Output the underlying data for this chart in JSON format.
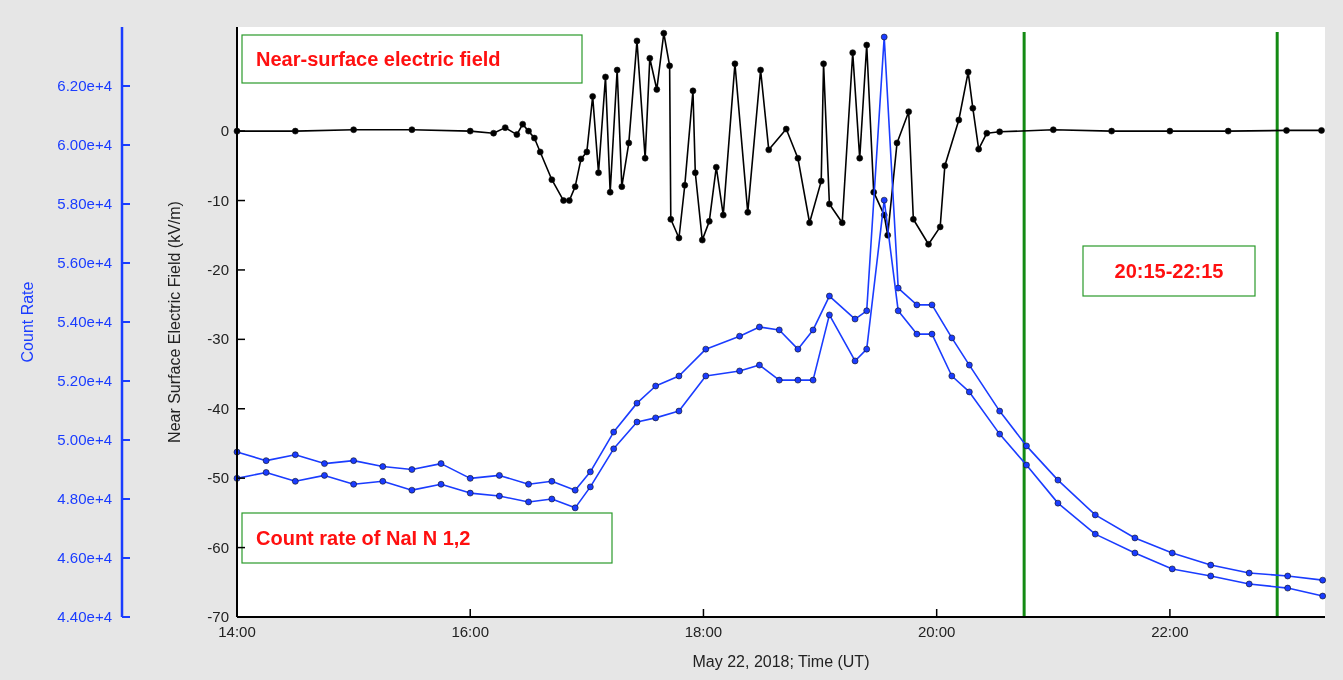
{
  "chart_data": {
    "type": "line",
    "xlabel": "May 22, 2018; Time (UT)",
    "ylabel": "Near Surface Electric Field (kV/m)",
    "y2label": "Count Rate",
    "annotations": [
      "Near-surface electric field",
      "Count rate of NaI N 1,2",
      "20:15-22:15"
    ],
    "xlim": [
      14,
      23.33
    ],
    "xticks": [
      {
        "value": 14,
        "label": "14:00"
      },
      {
        "value": 16,
        "label": "16:00"
      },
      {
        "value": 18,
        "label": "18:00"
      },
      {
        "value": 20,
        "label": "20:00"
      },
      {
        "value": 22,
        "label": "22:00"
      }
    ],
    "ylim": [
      -70,
      15
    ],
    "yticks": [
      -70,
      -60,
      -50,
      -40,
      -30,
      -20,
      -10,
      0
    ],
    "y2lim": [
      44000,
      64000
    ],
    "y2ticks": [
      {
        "value": 44000,
        "label": "4.40e+4"
      },
      {
        "value": 46000,
        "label": "4.60e+4"
      },
      {
        "value": 48000,
        "label": "4.80e+4"
      },
      {
        "value": 50000,
        "label": "5.00e+4"
      },
      {
        "value": 52000,
        "label": "5.20e+4"
      },
      {
        "value": 54000,
        "label": "5.40e+4"
      },
      {
        "value": 56000,
        "label": "5.60e+4"
      },
      {
        "value": 58000,
        "label": "5.80e+4"
      },
      {
        "value": 60000,
        "label": "6.00e+4"
      },
      {
        "value": 62000,
        "label": "6.20e+4"
      }
    ],
    "marker": "circle",
    "ref_lines": [
      {
        "axis": "x",
        "value": 20.75,
        "color": "#138a13"
      },
      {
        "axis": "x",
        "value": 22.92,
        "color": "#138a13"
      }
    ],
    "series": [
      {
        "color": "#000000",
        "x": [
          14,
          14.5,
          15,
          15.5,
          16,
          16.2,
          16.3,
          16.4,
          16.45,
          16.5,
          16.55,
          16.6,
          16.7,
          16.8,
          16.85,
          16.9,
          16.95,
          17,
          17.05,
          17.1,
          17.16,
          17.2,
          17.26,
          17.3,
          17.36,
          17.43,
          17.5,
          17.54,
          17.6,
          17.66,
          17.71,
          17.72,
          17.79,
          17.84,
          17.91,
          17.93,
          17.99,
          18.05,
          18.11,
          18.17,
          18.27,
          18.38,
          18.49,
          18.56,
          18.71,
          18.81,
          18.91,
          19.01,
          19.03,
          19.08,
          19.19,
          19.28,
          19.34,
          19.4,
          19.46,
          19.55,
          19.58,
          19.66,
          19.76,
          19.8,
          19.93,
          20.03,
          20.07,
          20.19,
          20.27,
          20.31,
          20.36,
          20.43,
          20.54,
          21,
          21.5,
          22,
          22.5,
          23,
          23.3
        ],
        "values": [
          0,
          0,
          0.2,
          0.2,
          0,
          -0.3,
          0.5,
          -0.5,
          1,
          0,
          -1,
          -3,
          -7,
          -10,
          -10,
          -8,
          -4,
          -3,
          5,
          -6,
          7.8,
          -8.8,
          8.8,
          -8,
          -1.7,
          13,
          -3.9,
          10.5,
          6,
          14.1,
          9.4,
          -12.7,
          -15.4,
          -7.8,
          5.8,
          -6,
          -15.7,
          -13,
          -5.2,
          -12.1,
          9.7,
          -11.7,
          8.8,
          -2.7,
          0.3,
          -3.9,
          -13.2,
          -7.2,
          9.7,
          -10.5,
          -13.2,
          11.3,
          -3.9,
          12.4,
          -8.8,
          -12.1,
          -15,
          -1.7,
          2.8,
          -12.7,
          -16.3,
          -13.8,
          -5,
          1.6,
          8.5,
          3.3,
          -2.6,
          -0.3,
          -0.1,
          0.2,
          0,
          0,
          0,
          0.1,
          0.1
        ]
      },
      {
        "color": "#1a3cff",
        "axis": "y2",
        "x": [
          14,
          14.25,
          14.5,
          14.75,
          15,
          15.25,
          15.5,
          15.75,
          16,
          16.25,
          16.5,
          16.7,
          16.9,
          17.03,
          17.23,
          17.43,
          17.59,
          17.79,
          18.02,
          18.31,
          18.48,
          18.65,
          18.81,
          18.94,
          19.08,
          19.3,
          19.4,
          19.55,
          19.67,
          19.83,
          19.96,
          20.13,
          20.28,
          20.54,
          20.77,
          21.04,
          21.36,
          21.7,
          22.02,
          22.35,
          22.68,
          23.01,
          23.31
        ],
        "values": [
          49590,
          49300,
          49500,
          49200,
          49300,
          49100,
          49000,
          49200,
          48700,
          48800,
          48500,
          48600,
          48300,
          48920,
          50270,
          51250,
          51830,
          52170,
          53080,
          53520,
          53830,
          53730,
          53080,
          53730,
          54880,
          54100,
          54380,
          63660,
          55150,
          54580,
          54580,
          53460,
          52540,
          50980,
          49800,
          48640,
          47460,
          46680,
          46170,
          45760,
          45490,
          45390,
          45250
        ]
      },
      {
        "color": "#1a3cff",
        "axis": "y2",
        "x": [
          14,
          14.25,
          14.5,
          14.75,
          15,
          15.25,
          15.5,
          15.75,
          16,
          16.25,
          16.5,
          16.7,
          16.9,
          17.03,
          17.23,
          17.43,
          17.59,
          17.79,
          18.02,
          18.31,
          18.48,
          18.65,
          18.81,
          18.94,
          19.08,
          19.3,
          19.4,
          19.55,
          19.67,
          19.83,
          19.96,
          20.13,
          20.28,
          20.54,
          20.77,
          21.04,
          21.36,
          21.7,
          22.02,
          22.35,
          22.68,
          23.01,
          23.31
        ],
        "values": [
          48700,
          48900,
          48600,
          48800,
          48500,
          48600,
          48300,
          48500,
          48200,
          48100,
          47900,
          48000,
          47700,
          48410,
          49700,
          50610,
          50750,
          50980,
          52170,
          52340,
          52540,
          52030,
          52030,
          52030,
          54240,
          52680,
          53080,
          58130,
          54380,
          53590,
          53590,
          52170,
          51630,
          50200,
          49150,
          47860,
          46810,
          46170,
          45630,
          45390,
          45120,
          44980,
          44710
        ]
      }
    ]
  }
}
